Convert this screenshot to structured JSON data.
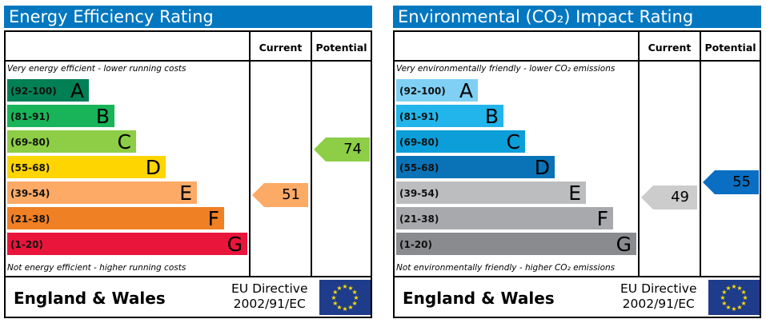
{
  "chart_data": [
    {
      "type": "table",
      "title": "Energy Efficiency Rating",
      "columns": [
        "Current",
        "Potential"
      ],
      "top_note": "Very energy efficient - lower running costs",
      "bottom_note": "Not energy efficient - higher running costs",
      "bands": [
        {
          "range": "(92-100)",
          "letter": "A",
          "color": "#008054"
        },
        {
          "range": "(81-91)",
          "letter": "B",
          "color": "#19b459"
        },
        {
          "range": "(69-80)",
          "letter": "C",
          "color": "#8dce46"
        },
        {
          "range": "(55-68)",
          "letter": "D",
          "color": "#ffd500"
        },
        {
          "range": "(39-54)",
          "letter": "E",
          "color": "#fcaa65"
        },
        {
          "range": "(21-38)",
          "letter": "F",
          "color": "#ef8023"
        },
        {
          "range": "(1-20)",
          "letter": "G",
          "color": "#e9153b"
        }
      ],
      "current": {
        "value": 51,
        "color": "#fcaa65"
      },
      "potential": {
        "value": 74,
        "color": "#8dce46"
      },
      "region": "England & Wales",
      "directive_line1": "EU Directive",
      "directive_line2": "2002/91/EC"
    },
    {
      "type": "table",
      "title": "Environmental (CO₂) Impact Rating",
      "columns": [
        "Current",
        "Potential"
      ],
      "top_note": "Very environmentally friendly - lower CO₂ emissions",
      "bottom_note": "Not environmentally friendly - higher CO₂ emissions",
      "bands": [
        {
          "range": "(92-100)",
          "letter": "A",
          "color": "#7fd0f4"
        },
        {
          "range": "(81-91)",
          "letter": "B",
          "color": "#22b5eb"
        },
        {
          "range": "(69-80)",
          "letter": "C",
          "color": "#0b9ed9"
        },
        {
          "range": "(55-68)",
          "letter": "D",
          "color": "#0a73b8"
        },
        {
          "range": "(39-54)",
          "letter": "E",
          "color": "#bbbdbf"
        },
        {
          "range": "(21-38)",
          "letter": "F",
          "color": "#a7a9ac"
        },
        {
          "range": "(1-20)",
          "letter": "G",
          "color": "#898b8e"
        }
      ],
      "current": {
        "value": 49,
        "color": "#cccccc"
      },
      "potential": {
        "value": 55,
        "color": "#0a6fc2"
      },
      "region": "England & Wales",
      "directive_line1": "EU Directive",
      "directive_line2": "2002/91/EC"
    }
  ]
}
